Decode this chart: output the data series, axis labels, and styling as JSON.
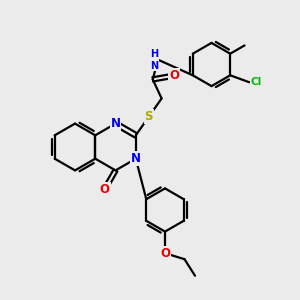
{
  "background_color": "#ebebeb",
  "atom_colors": {
    "N": "#0000ee",
    "O": "#ee0000",
    "S": "#aaaa00",
    "Cl": "#00bb00",
    "H": "#008080",
    "C": "#000000"
  },
  "bond_color": "#000000",
  "bond_width": 1.6,
  "font_size_atom": 8.5
}
